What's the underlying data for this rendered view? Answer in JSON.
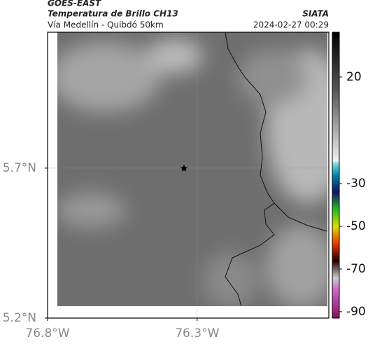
{
  "header": {
    "title": "GOES-EAST",
    "subtitle": "Temperatura de Brillo CH13",
    "route": "Vía Medellín - Quibdó 50km",
    "source": "SIATA",
    "datetime": "2024-02-27 00:29"
  },
  "map": {
    "xlim": [
      -76.8,
      -75.86
    ],
    "ylim": [
      5.2,
      6.153
    ],
    "xticks": [
      {
        "value": -76.8,
        "label": "76.8°W"
      },
      {
        "value": -76.3,
        "label": "76.3°W"
      }
    ],
    "yticks": [
      {
        "value": 5.2,
        "label": "5.2°N"
      },
      {
        "value": 5.7,
        "label": "5.7°N"
      }
    ],
    "grid": true
  },
  "colorbar": {
    "clim": [
      -93,
      41
    ],
    "ticks": [
      20,
      -30,
      -50,
      -70,
      -90
    ]
  }
}
